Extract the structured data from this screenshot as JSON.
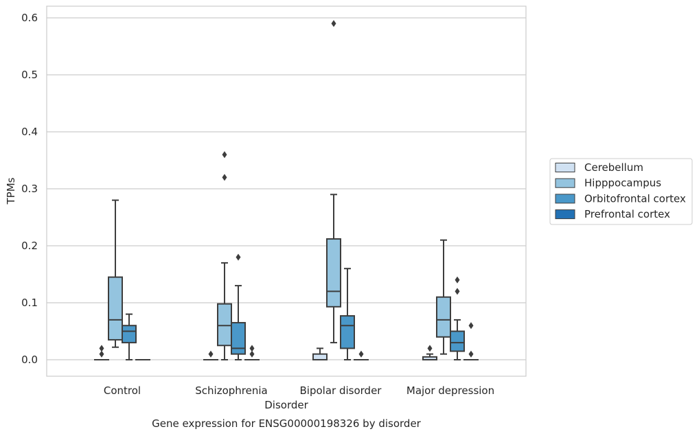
{
  "chart_data": {
    "type": "box",
    "title": "",
    "caption": "Gene expression for ENSG00000198326 by disorder",
    "xlabel": "Disorder",
    "ylabel": "TPMs",
    "ylim": [
      -0.028,
      0.62
    ],
    "yticks": [
      0.0,
      0.1,
      0.2,
      0.3,
      0.4,
      0.5,
      0.6
    ],
    "ytick_labels": [
      "0.0",
      "0.1",
      "0.2",
      "0.3",
      "0.4",
      "0.5",
      "0.6"
    ],
    "grid": true,
    "legend_position": "right",
    "categories": [
      "Control",
      "Schizophrenia",
      "Bipolar disorder",
      "Major depression"
    ],
    "series": [
      {
        "name": "Cerebellum",
        "color": "#d0e1f2",
        "boxes": [
          {
            "whisker_low": 0.0,
            "q1": 0.0,
            "median": 0.0,
            "q3": 0.0,
            "whisker_high": 0.0,
            "outliers": [
              0.01,
              0.02
            ]
          },
          {
            "whisker_low": 0.0,
            "q1": 0.0,
            "median": 0.0,
            "q3": 0.0,
            "whisker_high": 0.0,
            "outliers": [
              0.01
            ]
          },
          {
            "whisker_low": 0.0,
            "q1": 0.0,
            "median": 0.0,
            "q3": 0.01,
            "whisker_high": 0.02,
            "outliers": []
          },
          {
            "whisker_low": 0.0,
            "q1": 0.0,
            "median": 0.0,
            "q3": 0.005,
            "whisker_high": 0.01,
            "outliers": [
              0.02
            ]
          }
        ]
      },
      {
        "name": "Hipppocampus",
        "color": "#94c4df",
        "boxes": [
          {
            "whisker_low": 0.022,
            "q1": 0.035,
            "median": 0.07,
            "q3": 0.145,
            "whisker_high": 0.28,
            "outliers": []
          },
          {
            "whisker_low": 0.0,
            "q1": 0.025,
            "median": 0.06,
            "q3": 0.098,
            "whisker_high": 0.17,
            "outliers": [
              0.32,
              0.36
            ]
          },
          {
            "whisker_low": 0.03,
            "q1": 0.093,
            "median": 0.12,
            "q3": 0.212,
            "whisker_high": 0.29,
            "outliers": [
              0.59
            ]
          },
          {
            "whisker_low": 0.01,
            "q1": 0.04,
            "median": 0.07,
            "q3": 0.11,
            "whisker_high": 0.21,
            "outliers": []
          }
        ]
      },
      {
        "name": "Orbitofrontal cortex",
        "color": "#4a98c9",
        "boxes": [
          {
            "whisker_low": 0.0,
            "q1": 0.03,
            "median": 0.05,
            "q3": 0.06,
            "whisker_high": 0.08,
            "outliers": []
          },
          {
            "whisker_low": 0.0,
            "q1": 0.01,
            "median": 0.02,
            "q3": 0.065,
            "whisker_high": 0.13,
            "outliers": [
              0.18
            ]
          },
          {
            "whisker_low": 0.0,
            "q1": 0.02,
            "median": 0.06,
            "q3": 0.077,
            "whisker_high": 0.16,
            "outliers": []
          },
          {
            "whisker_low": 0.0,
            "q1": 0.015,
            "median": 0.03,
            "q3": 0.05,
            "whisker_high": 0.07,
            "outliers": [
              0.12,
              0.14
            ]
          }
        ]
      },
      {
        "name": "Prefrontal cortex",
        "color": "#2271b5",
        "boxes": [
          {
            "whisker_low": 0.0,
            "q1": 0.0,
            "median": 0.0,
            "q3": 0.0,
            "whisker_high": 0.0,
            "outliers": []
          },
          {
            "whisker_low": 0.0,
            "q1": 0.0,
            "median": 0.0,
            "q3": 0.0,
            "whisker_high": 0.0,
            "outliers": [
              0.01,
              0.02
            ]
          },
          {
            "whisker_low": 0.0,
            "q1": 0.0,
            "median": 0.0,
            "q3": 0.0,
            "whisker_high": 0.0,
            "outliers": [
              0.01
            ]
          },
          {
            "whisker_low": 0.0,
            "q1": 0.0,
            "median": 0.0,
            "q3": 0.0,
            "whisker_high": 0.0,
            "outliers": [
              0.01,
              0.06
            ]
          }
        ]
      }
    ]
  }
}
